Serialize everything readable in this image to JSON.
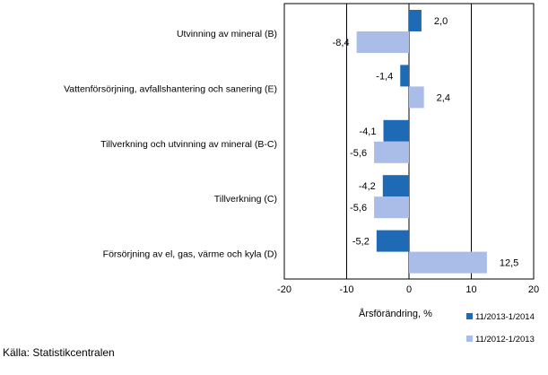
{
  "chart_data": {
    "type": "bar",
    "orientation": "horizontal",
    "categories": [
      "Utvinning av mineral  (B)",
      "Vattenförsörjning, avfallshantering och sanering (E)",
      "Tillverkning och utvinning av mineral (B-C)",
      "Tillverkning (C)",
      "Försörjning av el, gas, värme och kyla (D)"
    ],
    "series": [
      {
        "name": "11/2013-1/2014",
        "color": "#1f6ab4",
        "values": [
          2.0,
          -1.4,
          -4.1,
          -4.2,
          -5.2
        ],
        "labels": [
          "2,0",
          "-1,4",
          "-4,1",
          "-4,2",
          "-5,2"
        ]
      },
      {
        "name": "11/2012-1/2013",
        "color": "#a9bde8",
        "values": [
          -8.4,
          2.4,
          -5.6,
          -5.6,
          12.5
        ],
        "labels": [
          "-8,4",
          "2,4",
          "-5,6",
          "-5,6",
          "12,5"
        ]
      }
    ],
    "xlim": [
      -20,
      20
    ],
    "xticks": [
      -20,
      -10,
      0,
      10,
      20
    ],
    "xlabel": "Årsförändring, %",
    "gridlines": [
      -10,
      10
    ],
    "legend_position": "bottom-right"
  },
  "source": "Källa: Statistikcentralen"
}
